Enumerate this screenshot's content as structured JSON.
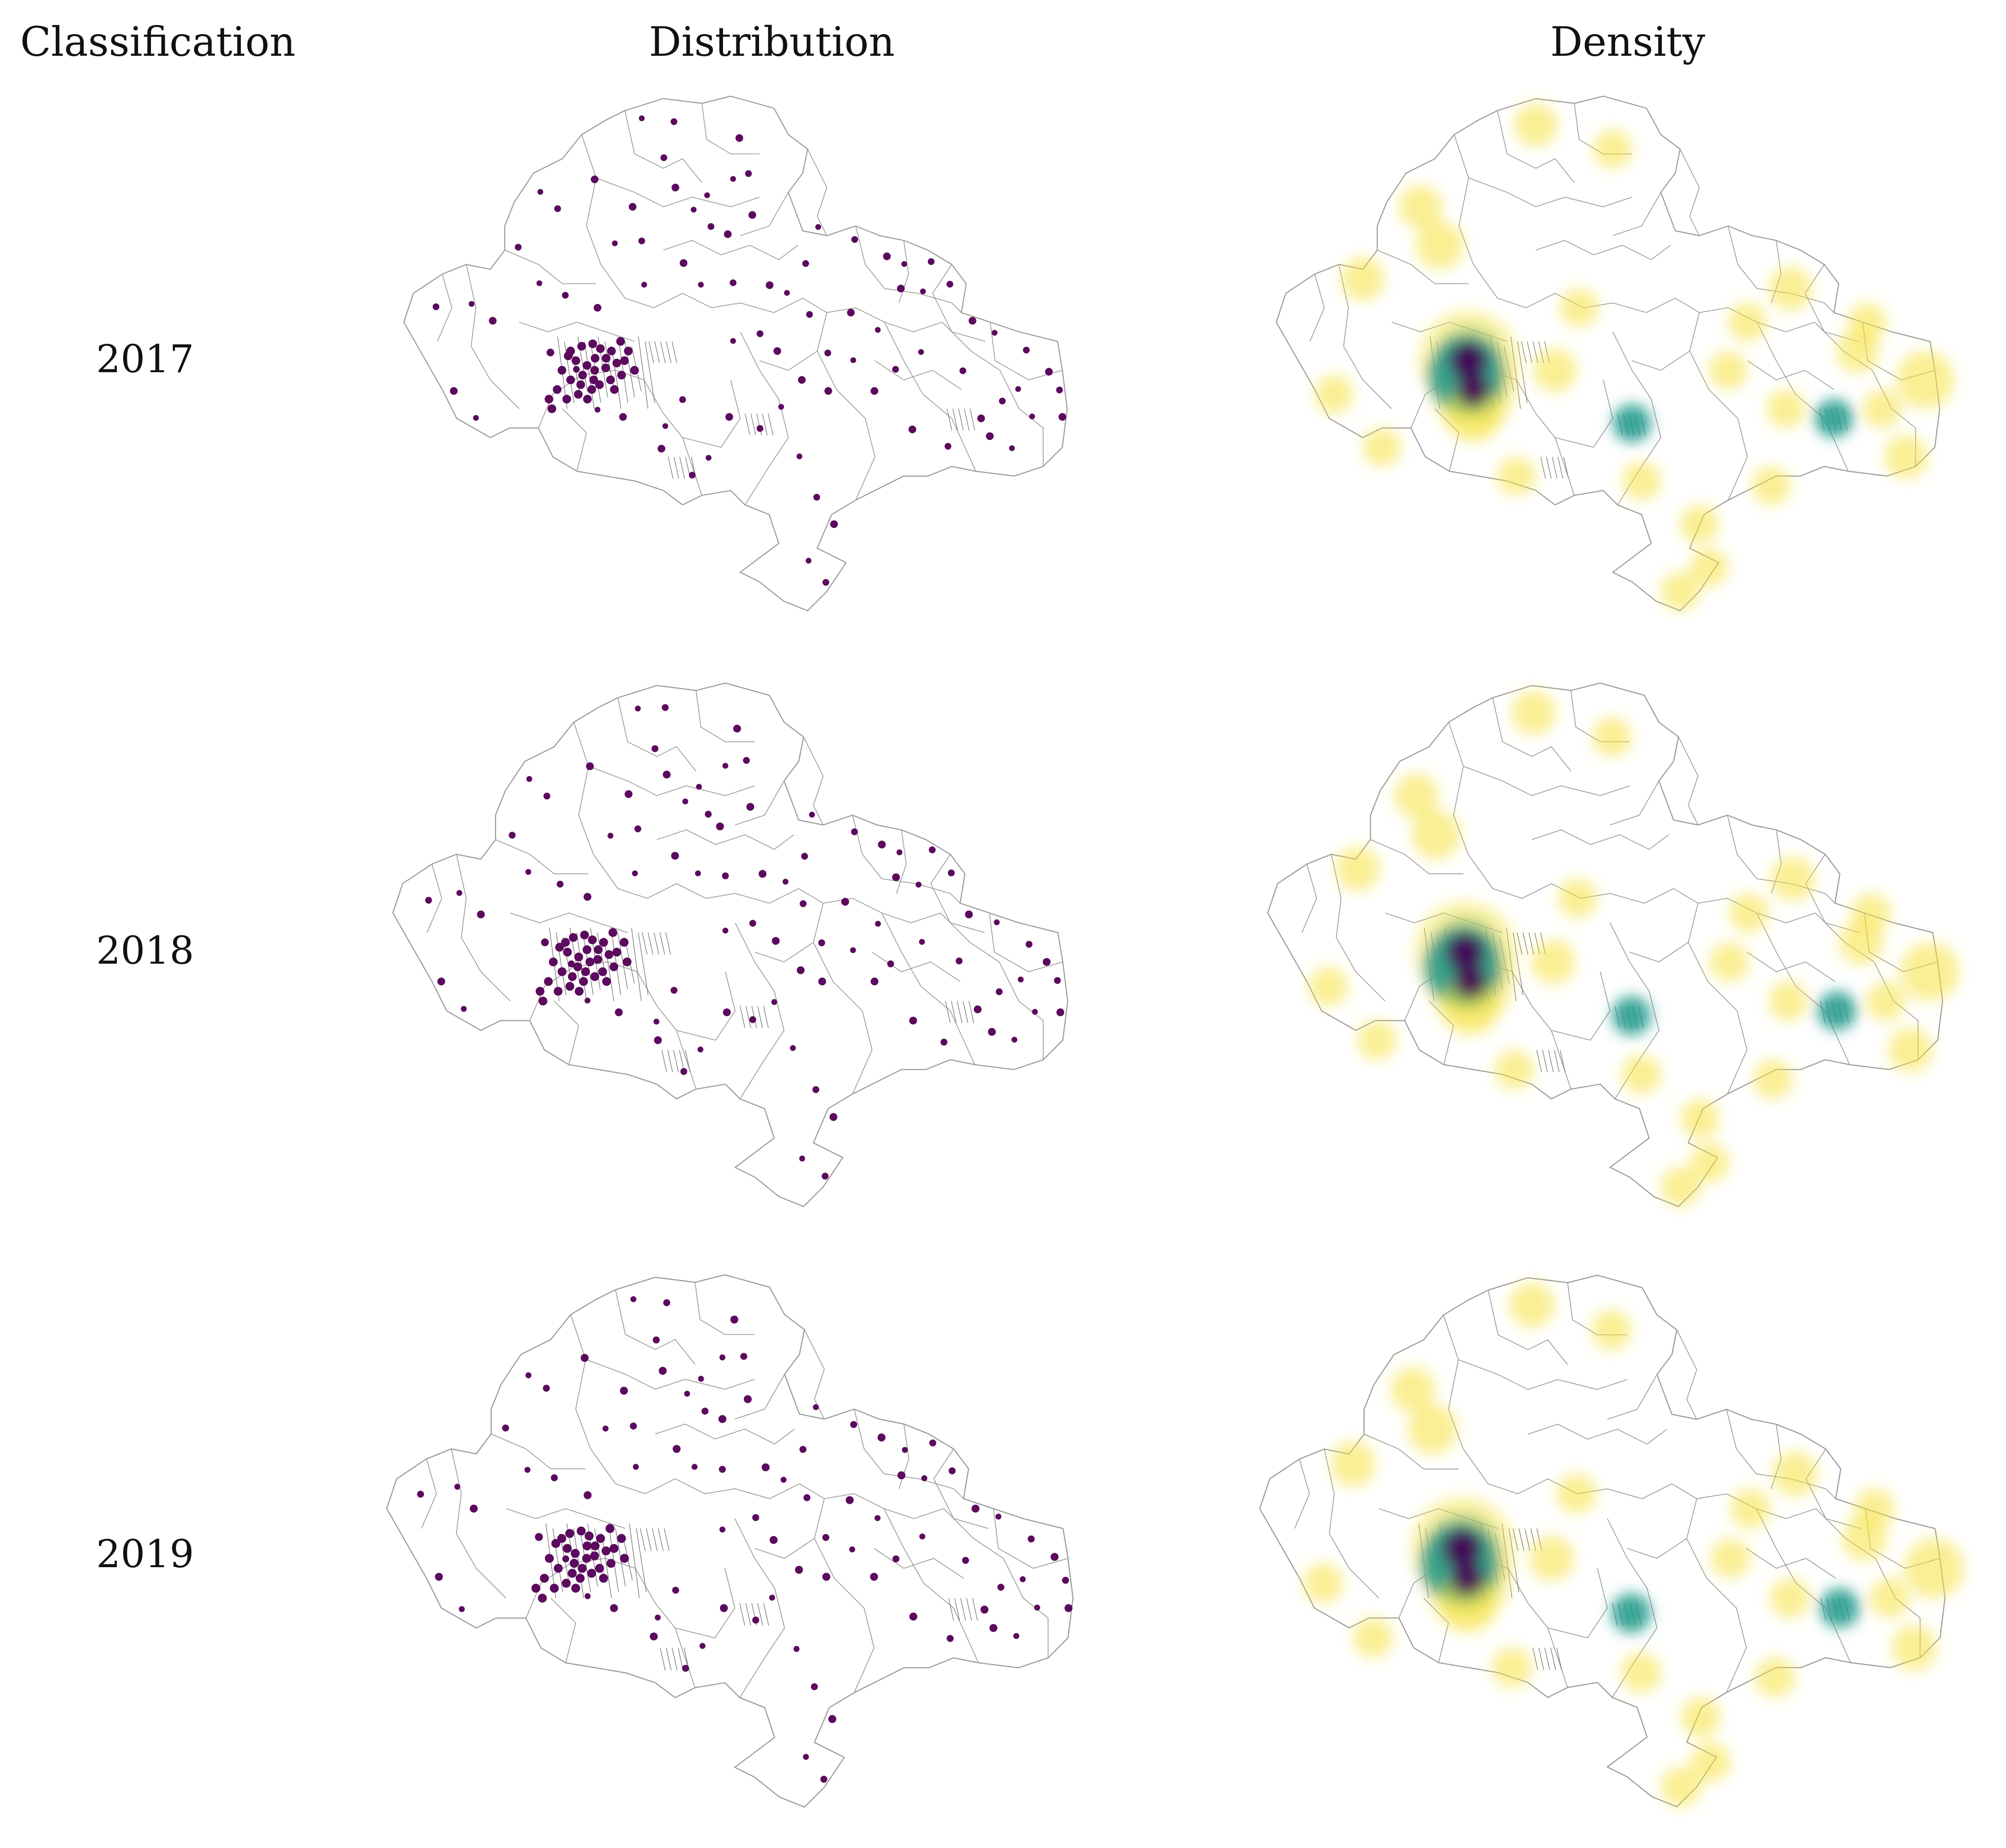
{
  "headers": {
    "classification": "Classification",
    "distribution": "Distribution",
    "density": "Density"
  },
  "rows": [
    {
      "year": "2017"
    },
    {
      "year": "2018"
    },
    {
      "year": "2019"
    }
  ],
  "colors": {
    "point": "#5b0a5e",
    "boundary": "#9a9a9a",
    "urban_lines": "#6e6e6e",
    "density_low": "#f6e23a",
    "density_mid": "#2a9d8f",
    "density_high": "#440154"
  }
}
